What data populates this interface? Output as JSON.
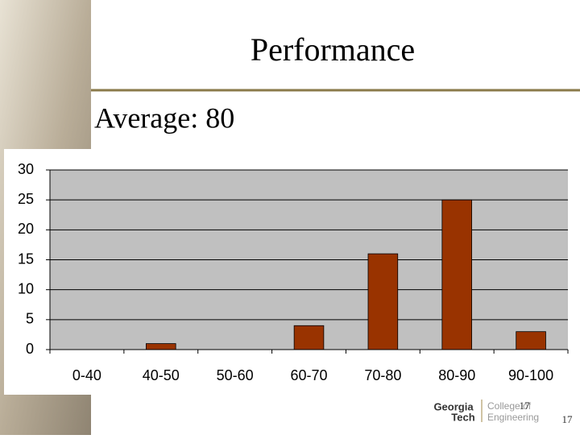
{
  "chart_data": {
    "type": "bar",
    "title": "Performance",
    "subtitle": "Average: 80",
    "categories": [
      "0-40",
      "40-50",
      "50-60",
      "60-70",
      "70-80",
      "80-90",
      "90-100"
    ],
    "values": [
      0,
      1,
      0,
      4,
      16,
      25,
      3
    ],
    "color": "#993300",
    "ylim": [
      0,
      30
    ],
    "yticks": [
      0,
      5,
      10,
      15,
      20,
      25,
      30
    ],
    "grid": true
  },
  "slide_number": "17",
  "logo": {
    "line1": "Georgia",
    "line2": "Tech",
    "line3": "College of",
    "line4": "Engineering"
  }
}
